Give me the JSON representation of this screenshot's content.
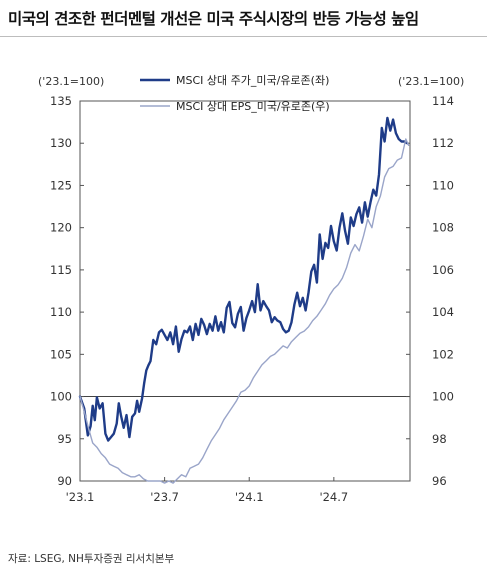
{
  "title": "미국의 견조한 펀더멘털 개선은 미국 주식시장의 반등 가능성 높임",
  "source": "자료: LSEG, NH투자증권 리서치본부",
  "chart_data": {
    "type": "line",
    "left_axis": {
      "unit": "('23.1=100)",
      "range": [
        90,
        135
      ],
      "ticks": [
        90,
        95,
        100,
        105,
        110,
        115,
        120,
        125,
        130,
        135
      ]
    },
    "right_axis": {
      "unit": "('23.1=100)",
      "range": [
        96,
        114
      ],
      "ticks": [
        96,
        98,
        100,
        102,
        104,
        106,
        108,
        110,
        112,
        114
      ]
    },
    "x_ticks": [
      "'23.1",
      "'23.7",
      "'24.1",
      "'24.7"
    ],
    "x_range": [
      0,
      23.4
    ],
    "x_tick_positions": [
      0,
      6,
      12,
      18
    ],
    "legend_position": "top",
    "series": [
      {
        "name": "MSCI 상대 주가_미국/유로존(좌)",
        "axis": "left",
        "color": "#1f3c88",
        "x": [
          0,
          0.3,
          0.55,
          0.75,
          0.9,
          1.05,
          1.2,
          1.4,
          1.6,
          1.8,
          2.0,
          2.2,
          2.4,
          2.6,
          2.75,
          2.9,
          3.1,
          3.3,
          3.5,
          3.7,
          3.9,
          4.05,
          4.2,
          4.4,
          4.55,
          4.7,
          4.85,
          5.0,
          5.2,
          5.4,
          5.6,
          5.8,
          6.0,
          6.2,
          6.4,
          6.6,
          6.8,
          7.0,
          7.2,
          7.4,
          7.6,
          7.8,
          8.0,
          8.2,
          8.4,
          8.6,
          8.8,
          9.0,
          9.2,
          9.4,
          9.6,
          9.8,
          10.0,
          10.2,
          10.4,
          10.6,
          10.8,
          11.0,
          11.2,
          11.4,
          11.6,
          11.8,
          12.0,
          12.2,
          12.4,
          12.6,
          12.8,
          13.0,
          13.2,
          13.4,
          13.6,
          13.8,
          14.0,
          14.2,
          14.4,
          14.6,
          14.8,
          15.0,
          15.2,
          15.4,
          15.6,
          15.8,
          16.0,
          16.2,
          16.4,
          16.6,
          16.8,
          17.0,
          17.2,
          17.4,
          17.6,
          17.8,
          18.0,
          18.2,
          18.4,
          18.6,
          18.8,
          19.0,
          19.2,
          19.4,
          19.6,
          19.8,
          20.0,
          20.2,
          20.4,
          20.6,
          20.8,
          21.0,
          21.2,
          21.4,
          21.6,
          21.8,
          22.0,
          22.2,
          22.4,
          22.6,
          22.8,
          23.0,
          23.2
        ],
        "values": [
          100,
          98.6,
          95.4,
          96.5,
          98.9,
          97.2,
          99.9,
          98.6,
          99.2,
          95.6,
          94.8,
          95.2,
          95.6,
          96.8,
          99.2,
          97.8,
          96.3,
          97.8,
          95.2,
          97.6,
          98.0,
          99.5,
          98.2,
          99.8,
          101.6,
          103.1,
          103.7,
          104.2,
          106.7,
          106.2,
          107.6,
          107.9,
          107.3,
          106.7,
          107.6,
          106.2,
          108.3,
          105.3,
          106.8,
          107.8,
          107.6,
          108.3,
          106.7,
          108.6,
          107.3,
          109.2,
          108.5,
          107.4,
          108.6,
          107.8,
          109.5,
          107.8,
          108.8,
          107.6,
          110.5,
          111.2,
          108.7,
          108.2,
          109.8,
          110.6,
          107.8,
          109.3,
          110.2,
          111.3,
          110.0,
          113.3,
          110.2,
          111.3,
          110.7,
          110.2,
          108.8,
          109.4,
          109.0,
          108.8,
          108.0,
          107.6,
          107.8,
          108.8,
          110.9,
          112.3,
          110.7,
          111.7,
          110.2,
          112.3,
          114.8,
          115.6,
          113.5,
          119.2,
          116.3,
          118.2,
          117.6,
          120.2,
          118.4,
          117.3,
          120.0,
          121.7,
          119.6,
          118.1,
          121.2,
          120.2,
          121.6,
          122.4,
          120.6,
          123.0,
          121.3,
          123.0,
          124.5,
          123.8,
          126.3,
          131.8,
          130.2,
          133.0,
          131.5,
          132.8,
          131.2,
          130.5,
          130.2,
          130.2,
          130.0
        ]
      },
      {
        "name": "MSCI 상대 EPS_미국/유로존(우)",
        "axis": "right",
        "color": "#9aa5c9",
        "x": [
          0,
          0.3,
          0.6,
          0.9,
          1.2,
          1.5,
          1.8,
          2.1,
          2.4,
          2.7,
          3.0,
          3.3,
          3.6,
          3.9,
          4.2,
          4.5,
          4.8,
          5.1,
          5.4,
          5.7,
          6.0,
          6.3,
          6.6,
          6.9,
          7.2,
          7.5,
          7.8,
          8.1,
          8.4,
          8.7,
          9.0,
          9.3,
          9.6,
          9.9,
          10.2,
          10.5,
          10.8,
          11.1,
          11.4,
          11.7,
          12.0,
          12.3,
          12.6,
          12.9,
          13.2,
          13.5,
          13.8,
          14.1,
          14.4,
          14.7,
          15.0,
          15.3,
          15.6,
          15.9,
          16.2,
          16.5,
          16.8,
          17.1,
          17.4,
          17.7,
          18.0,
          18.3,
          18.6,
          18.9,
          19.2,
          19.5,
          19.8,
          20.1,
          20.4,
          20.7,
          21.0,
          21.3,
          21.6,
          21.9,
          22.2,
          22.5,
          22.8,
          23.1,
          23.3
        ],
        "values": [
          100,
          99.3,
          98.5,
          97.8,
          97.6,
          97.3,
          97.1,
          96.8,
          96.7,
          96.6,
          96.4,
          96.3,
          96.2,
          96.2,
          96.3,
          96.1,
          96.0,
          96.0,
          96.0,
          96.0,
          95.9,
          96.0,
          95.9,
          96.1,
          96.3,
          96.2,
          96.6,
          96.7,
          96.8,
          97.1,
          97.5,
          97.9,
          98.2,
          98.5,
          98.9,
          99.2,
          99.5,
          99.8,
          100.2,
          100.3,
          100.5,
          100.9,
          101.2,
          101.5,
          101.7,
          101.9,
          102.0,
          102.2,
          102.4,
          102.3,
          102.6,
          102.8,
          103.0,
          103.1,
          103.3,
          103.6,
          103.8,
          104.1,
          104.4,
          104.8,
          105.1,
          105.3,
          105.6,
          106.1,
          106.8,
          107.2,
          106.9,
          107.6,
          108.4,
          108.0,
          109.0,
          109.5,
          110.4,
          110.8,
          110.9,
          111.2,
          111.3,
          112.2,
          111.9
        ]
      }
    ]
  }
}
